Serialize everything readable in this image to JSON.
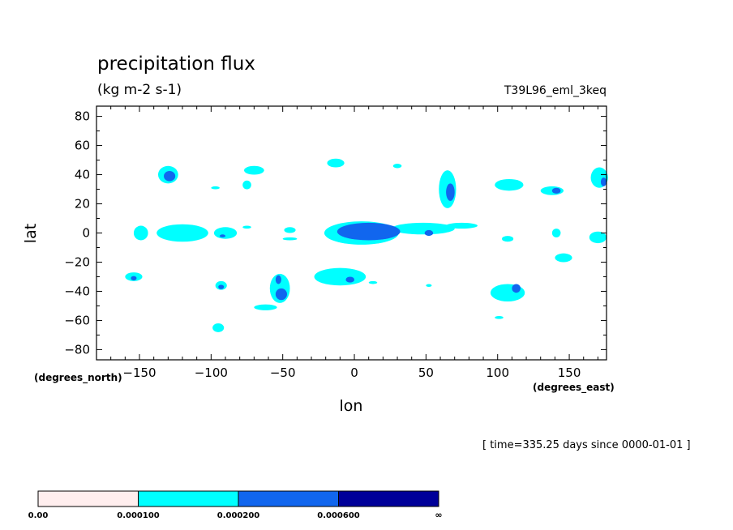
{
  "chart_data": {
    "type": "heatmap",
    "title": "precipitation flux",
    "units": "(kg m-2 s-1)",
    "run_name": "T39L96_eml_3keq",
    "xlabel": "lon",
    "ylabel": "lat",
    "x_units": "(degrees_east)",
    "y_units": "(degrees_north)",
    "timestamp": "[ time=335.25 days since 0000-01-01 ]",
    "xlim": [
      -180,
      176
    ],
    "ylim": [
      -87,
      87
    ],
    "x_ticks": [
      -150,
      -100,
      -50,
      0,
      50,
      100,
      150
    ],
    "x_tick_labels": [
      "−150",
      "−100",
      "−50",
      "0",
      "50",
      "100",
      "150"
    ],
    "y_ticks": [
      80,
      60,
      40,
      20,
      0,
      -20,
      -40,
      -60,
      -80
    ],
    "y_tick_labels": [
      "80",
      "60",
      "40",
      "20",
      "0",
      "−20",
      "−40",
      "−60",
      "−80"
    ],
    "levels": [
      {
        "label": "0.00",
        "color": "#ffeeee"
      },
      {
        "label": "0.000100",
        "color": "#00ffff"
      },
      {
        "label": "0.000200",
        "color": "#1166ee"
      },
      {
        "label": "0.000600",
        "color": "#000099"
      }
    ],
    "colorbar_end_label": "∞",
    "regions": [
      {
        "level": 1,
        "lon": -130,
        "lat": 40,
        "rlon": 7,
        "rlat": 6
      },
      {
        "level": 2,
        "lon": -129,
        "lat": 39,
        "rlon": 4,
        "rlat": 3.5
      },
      {
        "level": 1,
        "lon": -97,
        "lat": 31,
        "rlon": 3,
        "rlat": 1
      },
      {
        "level": 1,
        "lon": -70,
        "lat": 43,
        "rlon": 7,
        "rlat": 3
      },
      {
        "level": 1,
        "lon": -75,
        "lat": 33,
        "rlon": 3,
        "rlat": 3
      },
      {
        "level": 1,
        "lon": -13,
        "lat": 48,
        "rlon": 6,
        "rlat": 3
      },
      {
        "level": 1,
        "lon": 30,
        "lat": 46,
        "rlon": 3,
        "rlat": 1.5
      },
      {
        "level": 1,
        "lon": 65,
        "lat": 30,
        "rlon": 6,
        "rlat": 13
      },
      {
        "level": 2,
        "lon": 67,
        "lat": 28,
        "rlon": 3,
        "rlat": 6
      },
      {
        "level": 1,
        "lon": 108,
        "lat": 33,
        "rlon": 10,
        "rlat": 4
      },
      {
        "level": 1,
        "lon": 138,
        "lat": 29,
        "rlon": 8,
        "rlat": 3
      },
      {
        "level": 2,
        "lon": 141,
        "lat": 29,
        "rlon": 3,
        "rlat": 2
      },
      {
        "level": 1,
        "lon": 171,
        "lat": 38,
        "rlon": 6,
        "rlat": 7
      },
      {
        "level": 2,
        "lon": 174,
        "lat": 35,
        "rlon": 2,
        "rlat": 3
      },
      {
        "level": 1,
        "lon": -149,
        "lat": 0,
        "rlon": 5,
        "rlat": 5
      },
      {
        "level": 1,
        "lon": -120,
        "lat": 0,
        "rlon": 18,
        "rlat": 6
      },
      {
        "level": 1,
        "lon": -90,
        "lat": 0,
        "rlon": 8,
        "rlat": 4
      },
      {
        "level": 2,
        "lon": -92,
        "lat": -2,
        "rlon": 2,
        "rlat": 1
      },
      {
        "level": 1,
        "lon": -75,
        "lat": 4,
        "rlon": 3,
        "rlat": 1
      },
      {
        "level": 1,
        "lon": -45,
        "lat": 2,
        "rlon": 4,
        "rlat": 2
      },
      {
        "level": 1,
        "lon": -45,
        "lat": -4,
        "rlon": 5,
        "rlat": 1
      },
      {
        "level": 1,
        "lon": 5,
        "lat": 0,
        "rlon": 26,
        "rlat": 8
      },
      {
        "level": 1,
        "lon": 48,
        "lat": 3,
        "rlon": 22,
        "rlat": 4
      },
      {
        "level": 1,
        "lon": 75,
        "lat": 5,
        "rlon": 11,
        "rlat": 2
      },
      {
        "level": 2,
        "lon": 10,
        "lat": 1,
        "rlon": 22,
        "rlat": 6
      },
      {
        "level": 2,
        "lon": 52,
        "lat": 0,
        "rlon": 3,
        "rlat": 2
      },
      {
        "level": 1,
        "lon": 107,
        "lat": -4,
        "rlon": 4,
        "rlat": 2
      },
      {
        "level": 1,
        "lon": 141,
        "lat": 0,
        "rlon": 3,
        "rlat": 3
      },
      {
        "level": 1,
        "lon": 170,
        "lat": -3,
        "rlon": 6,
        "rlat": 4
      },
      {
        "level": 1,
        "lon": 146,
        "lat": -17,
        "rlon": 6,
        "rlat": 3
      },
      {
        "level": 1,
        "lon": -154,
        "lat": -30,
        "rlon": 6,
        "rlat": 3
      },
      {
        "level": 2,
        "lon": -154,
        "lat": -31,
        "rlon": 2,
        "rlat": 1.5
      },
      {
        "level": 1,
        "lon": -93,
        "lat": -36,
        "rlon": 4,
        "rlat": 3
      },
      {
        "level": 2,
        "lon": -93,
        "lat": -37,
        "rlon": 2,
        "rlat": 1.5
      },
      {
        "level": 1,
        "lon": -52,
        "lat": -38,
        "rlon": 7,
        "rlat": 10
      },
      {
        "level": 2,
        "lon": -51,
        "lat": -42,
        "rlon": 4,
        "rlat": 4
      },
      {
        "level": 2,
        "lon": -53,
        "lat": -32,
        "rlon": 2,
        "rlat": 3
      },
      {
        "level": 1,
        "lon": -62,
        "lat": -51,
        "rlon": 8,
        "rlat": 2
      },
      {
        "level": 1,
        "lon": -95,
        "lat": -65,
        "rlon": 4,
        "rlat": 3
      },
      {
        "level": 1,
        "lon": -10,
        "lat": -30,
        "rlon": 18,
        "rlat": 6
      },
      {
        "level": 2,
        "lon": -3,
        "lat": -32,
        "rlon": 3,
        "rlat": 2
      },
      {
        "level": 1,
        "lon": 13,
        "lat": -34,
        "rlon": 3,
        "rlat": 1
      },
      {
        "level": 1,
        "lon": 52,
        "lat": -36,
        "rlon": 2,
        "rlat": 1
      },
      {
        "level": 1,
        "lon": 107,
        "lat": -41,
        "rlon": 12,
        "rlat": 6
      },
      {
        "level": 2,
        "lon": 113,
        "lat": -38,
        "rlon": 3,
        "rlat": 3
      },
      {
        "level": 1,
        "lon": 101,
        "lat": -58,
        "rlon": 3,
        "rlat": 1
      }
    ]
  }
}
